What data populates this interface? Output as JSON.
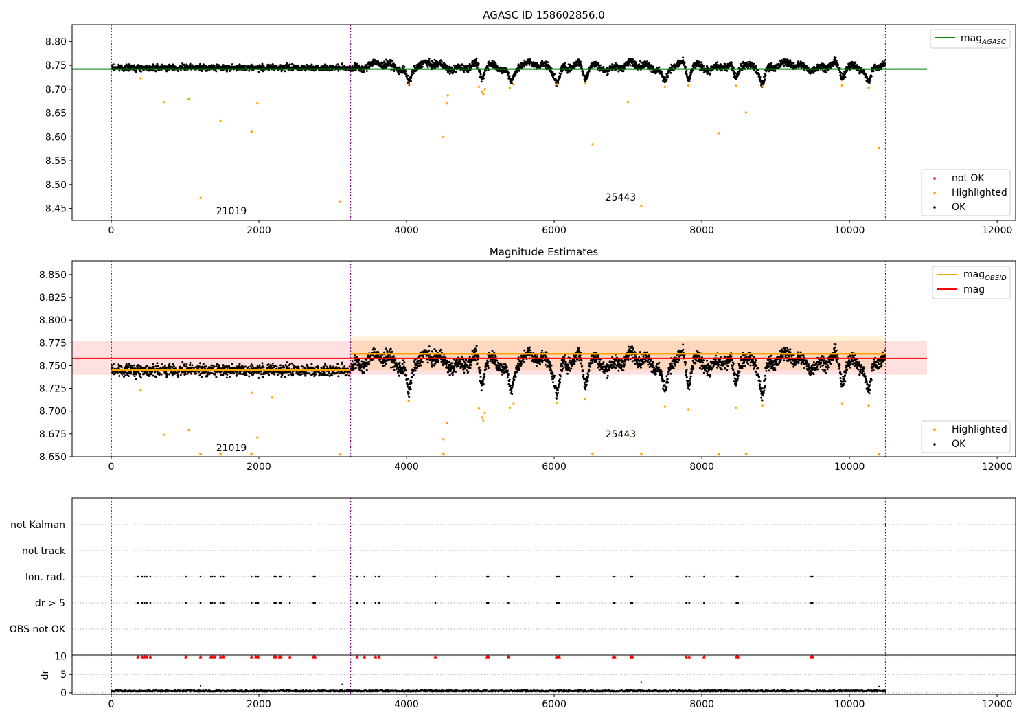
{
  "chart_data": [
    {
      "id": "p1",
      "type": "scatter",
      "title": "AGASC ID 158602856.0",
      "xlim": [
        -530,
        12250
      ],
      "ylim": [
        8.425,
        8.835
      ],
      "xticks": [
        0,
        2000,
        4000,
        6000,
        8000,
        10000,
        12000
      ],
      "xtick_labels": [
        "0",
        "2000",
        "4000",
        "6000",
        "8000",
        "10000",
        "12000"
      ],
      "yticks": [
        8.45,
        8.5,
        8.55,
        8.6,
        8.65,
        8.7,
        8.75,
        8.8
      ],
      "ytick_labels": [
        "8.45",
        "8.50",
        "8.55",
        "8.60",
        "8.65",
        "8.70",
        "8.75",
        "8.80"
      ],
      "vlines": [
        0,
        3240,
        10490
      ],
      "hline": {
        "name": "mag_AGASC",
        "y": 8.742,
        "x": [
          -530,
          11050
        ],
        "color": "#008000"
      },
      "obsid_labels": [
        {
          "text": "21019",
          "x": 1620,
          "y": 8.437
        },
        {
          "text": "25443",
          "x": 6870,
          "y": 8.462
        }
      ],
      "highlighted": [
        [
          400,
          8.723
        ],
        [
          710,
          8.673
        ],
        [
          1050,
          8.679
        ],
        [
          1480,
          8.633
        ],
        [
          1900,
          8.611
        ],
        [
          1980,
          8.67
        ],
        [
          1210,
          8.472
        ],
        [
          3100,
          8.465
        ],
        [
          4500,
          8.6
        ],
        [
          4550,
          8.67
        ],
        [
          4560,
          8.687
        ],
        [
          7000,
          8.673
        ],
        [
          6520,
          8.585
        ],
        [
          7180,
          8.456
        ],
        [
          8230,
          8.608
        ],
        [
          8600,
          8.651
        ],
        [
          10400,
          8.577
        ],
        [
          5020,
          8.695
        ],
        [
          5040,
          8.69
        ],
        [
          5060,
          8.7
        ],
        [
          4980,
          8.705
        ],
        [
          5400,
          8.703
        ],
        [
          5450,
          8.71
        ],
        [
          4030,
          8.71
        ],
        [
          6040,
          8.71
        ],
        [
          6420,
          8.712
        ],
        [
          7500,
          8.705
        ],
        [
          7820,
          8.708
        ],
        [
          8460,
          8.707
        ],
        [
          8820,
          8.706
        ],
        [
          9900,
          8.708
        ],
        [
          10260,
          8.703
        ]
      ],
      "legends": [
        {
          "position": "upper-right",
          "entries": [
            {
              "label": "mag",
              "sub": "AGASC",
              "kind": "line",
              "color": "#008000"
            }
          ]
        },
        {
          "position": "lower-right",
          "entries": [
            {
              "label": "not OK",
              "kind": "dot",
              "color": "#ff0000"
            },
            {
              "label": "Highlighted",
              "kind": "dot",
              "color": "#ffa500"
            },
            {
              "label": "OK",
              "kind": "dot",
              "color": "#000000"
            }
          ]
        }
      ]
    },
    {
      "id": "p2",
      "type": "scatter",
      "title": "Magnitude Estimates",
      "xlim": [
        -530,
        12250
      ],
      "ylim": [
        8.65,
        8.865
      ],
      "xticks": [
        0,
        2000,
        4000,
        6000,
        8000,
        10000,
        12000
      ],
      "xtick_labels": [
        "0",
        "2000",
        "4000",
        "6000",
        "8000",
        "10000",
        "12000"
      ],
      "yticks": [
        8.65,
        8.675,
        8.7,
        8.725,
        8.75,
        8.775,
        8.8,
        8.825,
        8.85
      ],
      "ytick_labels": [
        "8.650",
        "8.675",
        "8.700",
        "8.725",
        "8.750",
        "8.775",
        "8.800",
        "8.825",
        "8.850"
      ],
      "vlines": [
        0,
        3240,
        10490
      ],
      "mag": {
        "y": 8.758,
        "band": [
          8.74,
          8.777
        ],
        "x": [
          -530,
          11050
        ],
        "color": "#ff0000"
      },
      "mag_obsid": [
        {
          "x": [
            0,
            3240
          ],
          "y": 8.745,
          "band": [
            8.74,
            8.75
          ]
        },
        {
          "x": [
            3240,
            10490
          ],
          "y": 8.763,
          "band": [
            8.745,
            8.782
          ]
        }
      ],
      "obsid_labels": [
        {
          "text": "21019",
          "x": 1620,
          "y": 8.659
        },
        {
          "text": "25443",
          "x": 6870,
          "y": 8.673
        }
      ],
      "highlighted": [
        [
          400,
          8.723
        ],
        [
          710,
          8.674
        ],
        [
          1050,
          8.679
        ],
        [
          1900,
          8.72
        ],
        [
          1980,
          8.671
        ],
        [
          2180,
          8.715
        ],
        [
          4500,
          8.669
        ],
        [
          4550,
          8.687
        ],
        [
          7000,
          8.674
        ],
        [
          4030,
          8.711
        ],
        [
          6040,
          8.709
        ],
        [
          6420,
          8.713
        ],
        [
          7500,
          8.705
        ],
        [
          7820,
          8.702
        ],
        [
          8460,
          8.704
        ],
        [
          8820,
          8.706
        ],
        [
          9900,
          8.708
        ],
        [
          10260,
          8.706
        ],
        [
          5020,
          8.693
        ],
        [
          5040,
          8.69
        ],
        [
          5060,
          8.698
        ],
        [
          4980,
          8.703
        ],
        [
          5400,
          8.704
        ],
        [
          5450,
          8.708
        ]
      ],
      "clipped_markers": [
        1210,
        1480,
        1900,
        3100,
        4500,
        6520,
        7180,
        8230,
        8600,
        10400
      ],
      "legends": [
        {
          "position": "upper-right",
          "entries": [
            {
              "label": "mag",
              "sub": "OBSID",
              "kind": "line",
              "color": "#ffa500"
            },
            {
              "label": "mag",
              "kind": "line",
              "color": "#ff0000"
            }
          ]
        },
        {
          "position": "lower-right",
          "entries": [
            {
              "label": "Highlighted",
              "kind": "dot",
              "color": "#ffa500"
            },
            {
              "label": "OK",
              "kind": "dot",
              "color": "#000000"
            }
          ]
        }
      ]
    },
    {
      "id": "p3",
      "type": "scatter",
      "title": "",
      "xlim": [
        -530,
        12250
      ],
      "vlines": [
        0,
        3240,
        10490
      ],
      "categories": [
        "not Kalman",
        "not track",
        "Ion. rad.",
        "dr > 5",
        "OBS not OK"
      ],
      "flag_times": [
        360,
        420,
        450,
        480,
        530,
        1010,
        1210,
        1350,
        1370,
        1400,
        1480,
        1520,
        1900,
        1960,
        1990,
        2210,
        2230,
        2280,
        2300,
        2420,
        2740,
        2760,
        3330,
        3430,
        3580,
        3630,
        4390,
        5090,
        5110,
        5380,
        6030,
        6050,
        6070,
        6800,
        6820,
        7040,
        7060,
        7790,
        7830,
        8030,
        8470,
        8490,
        9480,
        9500
      ]
    },
    {
      "id": "p4",
      "type": "scatter",
      "title": "",
      "ylabel": "dr",
      "xlim": [
        -530,
        12250
      ],
      "ylim": [
        -0.4,
        10.3
      ],
      "xticks": [
        0,
        2000,
        4000,
        6000,
        8000,
        10000,
        12000
      ],
      "xtick_labels": [
        "0",
        "2000",
        "4000",
        "6000",
        "8000",
        "10000",
        "12000"
      ],
      "yticks": [
        0,
        5,
        10
      ],
      "ytick_labels": [
        "0",
        "5",
        "10"
      ],
      "vlines": [
        0,
        3240,
        10490
      ],
      "dr_outliers": [
        [
          1210,
          1.9
        ],
        [
          3130,
          2.3
        ],
        [
          7180,
          2.9
        ],
        [
          10400,
          1.7
        ]
      ]
    }
  ]
}
